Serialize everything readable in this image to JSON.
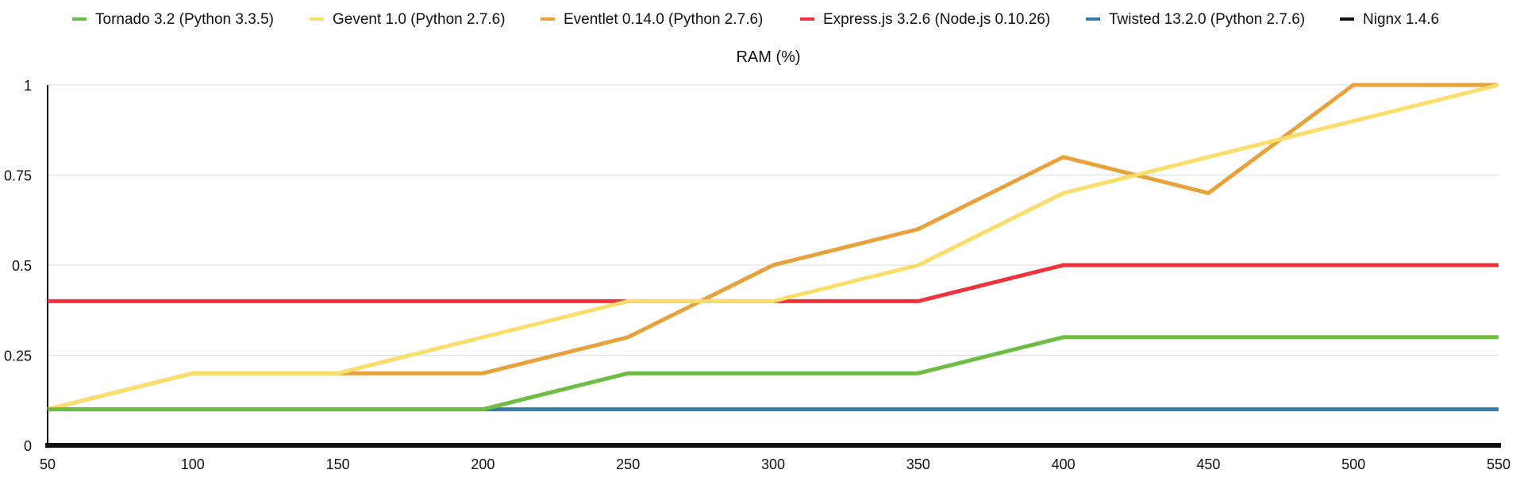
{
  "chart_data": {
    "type": "line",
    "title": "RAM (%)",
    "xlabel": "",
    "ylabel": "",
    "x": [
      50,
      100,
      150,
      200,
      250,
      300,
      350,
      400,
      450,
      500,
      550
    ],
    "x_tick_labels": [
      "50",
      "100",
      "150",
      "200",
      "250",
      "300",
      "350",
      "400",
      "450",
      "500",
      "550"
    ],
    "y_ticks": [
      0,
      0.25,
      0.5,
      0.75,
      1
    ],
    "y_tick_labels": [
      "0",
      "0.25",
      "0.5",
      "0.75",
      "1"
    ],
    "xlim": [
      50,
      550
    ],
    "ylim": [
      0,
      1
    ],
    "grid": true,
    "legend_position": "top",
    "series": [
      {
        "name": "Tornado 3.2 (Python 3.3.5)",
        "color": "#6dbd45",
        "values": [
          0.1,
          0.1,
          0.1,
          0.1,
          0.2,
          0.2,
          0.2,
          0.3,
          0.3,
          0.3,
          0.3
        ]
      },
      {
        "name": "Gevent 1.0 (Python 2.7.6)",
        "color": "#f9de6b",
        "values": [
          0.1,
          0.2,
          0.2,
          0.3,
          0.4,
          0.4,
          0.5,
          0.7,
          0.8,
          0.9,
          1.0
        ]
      },
      {
        "name": "Eventlet 0.14.0 (Python 2.7.6)",
        "color": "#e9a23b",
        "values": [
          0.1,
          0.2,
          0.2,
          0.2,
          0.3,
          0.5,
          0.6,
          0.8,
          0.7,
          1.0,
          1.0
        ]
      },
      {
        "name": "Express.js 3.2.6 (Node.js 0.10.26)",
        "color": "#f0333a",
        "values": [
          0.4,
          0.4,
          0.4,
          0.4,
          0.4,
          0.4,
          0.4,
          0.5,
          0.5,
          0.5,
          0.5
        ]
      },
      {
        "name": "Twisted 13.2.0 (Python 2.7.6)",
        "color": "#3a7ca8",
        "values": [
          0.1,
          0.1,
          0.1,
          0.1,
          0.1,
          0.1,
          0.1,
          0.1,
          0.1,
          0.1,
          0.1
        ]
      },
      {
        "name": "Nignx 1.4.6",
        "color": "#111111",
        "values": [
          0,
          0,
          0,
          0,
          0,
          0,
          0,
          0,
          0,
          0,
          0
        ]
      }
    ],
    "draw_order": [
      5,
      4,
      3,
      2,
      1,
      0
    ]
  }
}
